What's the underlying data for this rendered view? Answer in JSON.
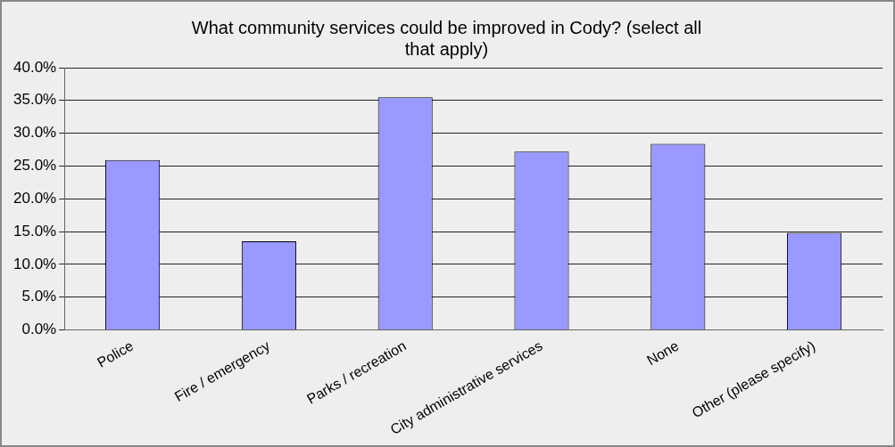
{
  "chart_data": {
    "type": "bar",
    "title": "What community services could be improved in Cody? (select all that apply)",
    "categories": [
      "Police",
      "Fire / emergency",
      "Parks / recreation",
      "City administrative services",
      "None",
      "Other (please specify)"
    ],
    "values": [
      25.9,
      13.5,
      35.5,
      27.2,
      28.4,
      14.8
    ],
    "color": "#9999ff",
    "ylim": [
      0,
      40
    ],
    "yticks": [
      {
        "value": 0,
        "label": "0.0%"
      },
      {
        "value": 5,
        "label": "5.0%"
      },
      {
        "value": 10,
        "label": "10.0%"
      },
      {
        "value": 15,
        "label": "15.0%"
      },
      {
        "value": 20,
        "label": "20.0%"
      },
      {
        "value": 25,
        "label": "25.0%"
      },
      {
        "value": 30,
        "label": "30.0%"
      },
      {
        "value": 35,
        "label": "35.0%"
      },
      {
        "value": 40,
        "label": "40.0%"
      }
    ],
    "grid": "y",
    "legend": false
  }
}
